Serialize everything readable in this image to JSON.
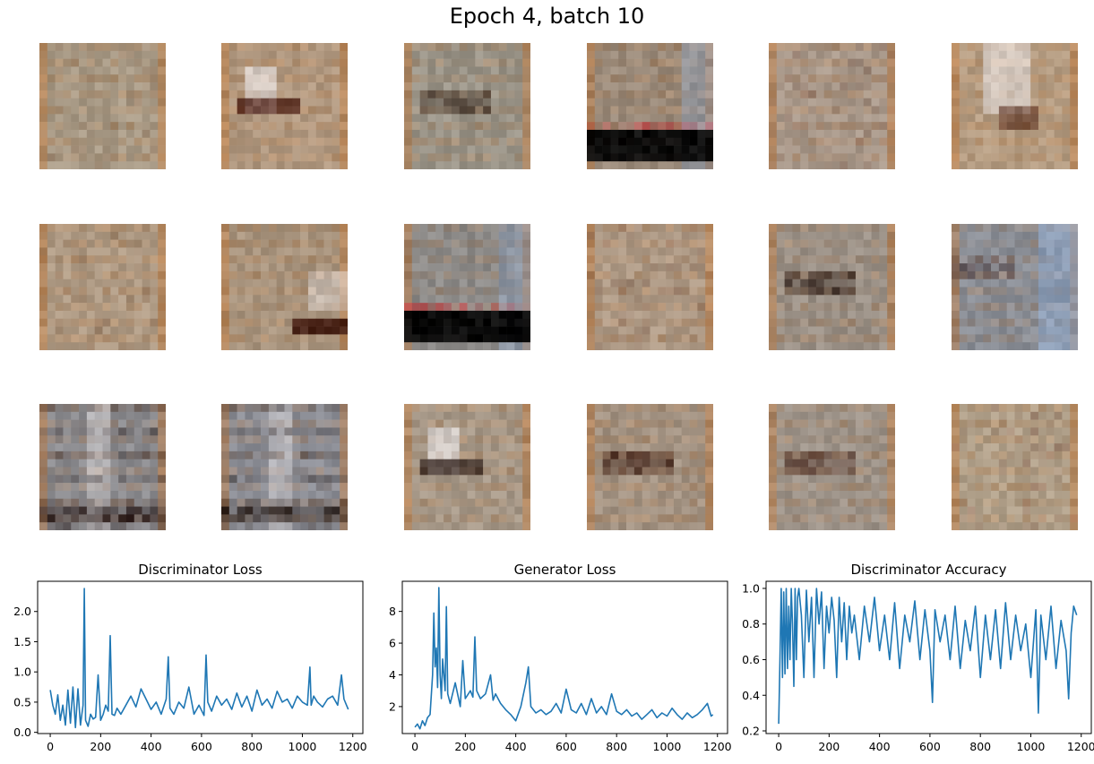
{
  "figure": {
    "title": "Epoch 4, batch 10",
    "grid_rows": 3,
    "grid_cols": 6
  },
  "samples": [
    {
      "base": "#a89a86",
      "accent": "#8a5a3a",
      "style": "faint"
    },
    {
      "base": "#b09880",
      "accent": "#4a1a10",
      "style": "white-left"
    },
    {
      "base": "#9a9488",
      "accent": "#3a2a20",
      "style": "dark-mid"
    },
    {
      "base": "#9a8a7a",
      "accent": "#080808",
      "style": "black-bar"
    },
    {
      "base": "#a8988a",
      "accent": "#6a3a2a",
      "style": "faint"
    },
    {
      "base": "#b49c82",
      "accent": "#5a3020",
      "style": "white-blob"
    },
    {
      "base": "#ae9a84",
      "accent": "#7a5030",
      "style": "faint"
    },
    {
      "base": "#a8947e",
      "accent": "#3a1208",
      "style": "dark-corner"
    },
    {
      "base": "#8c8a88",
      "accent": "#050505",
      "style": "black-bar"
    },
    {
      "base": "#ae9a86",
      "accent": "#6a4030",
      "style": "faint"
    },
    {
      "base": "#9a9086",
      "accent": "#2a1a14",
      "style": "dark-mid"
    },
    {
      "base": "#8a8e96",
      "accent": "#3a2020",
      "style": "blue-right"
    },
    {
      "base": "#8c8c90",
      "accent": "#1a0a08",
      "style": "dark-bottom"
    },
    {
      "base": "#8a8c94",
      "accent": "#20140f",
      "style": "dark-bottom"
    },
    {
      "base": "#a69888",
      "accent": "#2a1a14",
      "style": "white-left"
    },
    {
      "base": "#a29282",
      "accent": "#3a1a10",
      "style": "dark-mid"
    },
    {
      "base": "#9c9288",
      "accent": "#4a2a20",
      "style": "dark-mid"
    },
    {
      "base": "#b0a08a",
      "accent": "#7a4030",
      "style": "faint"
    }
  ],
  "chart_data": [
    {
      "type": "line",
      "title": "Discriminator Loss",
      "color": "#1f77b4",
      "xlim": [
        -50,
        1240
      ],
      "ylim": [
        -0.02,
        2.5
      ],
      "xticks": [
        0,
        200,
        400,
        600,
        800,
        1000,
        1200
      ],
      "yticks": [
        0.0,
        0.5,
        1.0,
        1.5,
        2.0
      ],
      "ytick_labels": [
        "0.0",
        "0.5",
        "1.0",
        "1.5",
        "2.0"
      ],
      "series": [
        {
          "x": [
            0,
            10,
            20,
            30,
            40,
            50,
            60,
            70,
            80,
            90,
            100,
            110,
            120,
            130,
            135,
            140,
            150,
            160,
            170,
            180,
            190,
            200,
            210,
            220,
            230,
            238,
            245,
            255,
            265,
            280,
            300,
            320,
            340,
            360,
            380,
            400,
            420,
            440,
            460,
            468,
            475,
            490,
            510,
            530,
            550,
            570,
            590,
            610,
            618,
            625,
            640,
            660,
            680,
            700,
            720,
            740,
            760,
            780,
            800,
            820,
            840,
            860,
            880,
            900,
            920,
            940,
            960,
            980,
            1000,
            1020,
            1030,
            1035,
            1045,
            1060,
            1080,
            1100,
            1120,
            1140,
            1155,
            1165,
            1175,
            1182
          ],
          "y": [
            0.7,
            0.45,
            0.3,
            0.62,
            0.2,
            0.45,
            0.12,
            0.7,
            0.15,
            0.75,
            0.08,
            0.72,
            0.12,
            0.45,
            2.38,
            0.2,
            0.1,
            0.3,
            0.22,
            0.25,
            0.95,
            0.2,
            0.3,
            0.45,
            0.35,
            1.6,
            0.3,
            0.28,
            0.4,
            0.3,
            0.45,
            0.6,
            0.42,
            0.72,
            0.55,
            0.38,
            0.5,
            0.3,
            0.55,
            1.25,
            0.4,
            0.3,
            0.5,
            0.4,
            0.75,
            0.3,
            0.45,
            0.28,
            1.28,
            0.5,
            0.35,
            0.6,
            0.45,
            0.55,
            0.38,
            0.65,
            0.42,
            0.6,
            0.35,
            0.7,
            0.45,
            0.55,
            0.4,
            0.68,
            0.5,
            0.55,
            0.4,
            0.6,
            0.5,
            0.45,
            1.08,
            0.45,
            0.6,
            0.5,
            0.42,
            0.55,
            0.6,
            0.45,
            0.95,
            0.55,
            0.45,
            0.38
          ]
        }
      ]
    },
    {
      "type": "line",
      "title": "Generator Loss",
      "color": "#1f77b4",
      "xlim": [
        -50,
        1240
      ],
      "ylim": [
        0.3,
        9.9
      ],
      "xticks": [
        0,
        200,
        400,
        600,
        800,
        1000,
        1200
      ],
      "yticks": [
        2,
        4,
        6,
        8
      ],
      "ytick_labels": [
        "2",
        "4",
        "6",
        "8"
      ],
      "series": [
        {
          "x": [
            0,
            10,
            20,
            30,
            40,
            50,
            60,
            70,
            75,
            80,
            85,
            90,
            95,
            100,
            105,
            110,
            120,
            125,
            130,
            140,
            160,
            180,
            190,
            200,
            220,
            230,
            238,
            245,
            260,
            280,
            300,
            310,
            320,
            340,
            360,
            380,
            400,
            420,
            440,
            450,
            460,
            480,
            500,
            520,
            540,
            560,
            580,
            600,
            620,
            640,
            660,
            680,
            700,
            720,
            740,
            760,
            780,
            800,
            820,
            840,
            860,
            880,
            900,
            920,
            940,
            960,
            980,
            1000,
            1020,
            1040,
            1060,
            1080,
            1100,
            1120,
            1140,
            1160,
            1175,
            1182
          ],
          "y": [
            0.7,
            0.9,
            0.6,
            1.1,
            0.8,
            1.3,
            1.5,
            4.0,
            7.9,
            4.5,
            5.7,
            3.2,
            9.5,
            4.0,
            2.5,
            5.0,
            3.0,
            8.3,
            2.8,
            2.2,
            3.5,
            2.0,
            4.9,
            2.5,
            3.0,
            2.6,
            6.4,
            3.0,
            2.5,
            2.8,
            4.0,
            2.4,
            2.8,
            2.2,
            1.8,
            1.5,
            1.1,
            2.0,
            3.5,
            4.5,
            2.0,
            1.6,
            1.8,
            1.5,
            1.7,
            2.2,
            1.6,
            3.1,
            1.8,
            1.6,
            2.2,
            1.5,
            2.5,
            1.6,
            2.0,
            1.5,
            2.8,
            1.7,
            1.5,
            1.8,
            1.4,
            1.6,
            1.2,
            1.5,
            1.8,
            1.3,
            1.6,
            1.4,
            1.9,
            1.5,
            1.2,
            1.6,
            1.3,
            1.5,
            1.8,
            2.2,
            1.4,
            1.5
          ]
        }
      ]
    },
    {
      "type": "line",
      "title": "Discriminator Accuracy",
      "color": "#1f77b4",
      "xlim": [
        -50,
        1240
      ],
      "ylim": [
        0.185,
        1.04
      ],
      "xticks": [
        0,
        200,
        400,
        600,
        800,
        1000,
        1200
      ],
      "yticks": [
        0.2,
        0.4,
        0.6,
        0.8,
        1.0
      ],
      "ytick_labels": [
        "0.2",
        "0.4",
        "0.6",
        "0.8",
        "1.0"
      ],
      "series": [
        {
          "x": [
            0,
            5,
            10,
            15,
            20,
            25,
            30,
            35,
            40,
            45,
            50,
            55,
            60,
            65,
            70,
            75,
            80,
            90,
            100,
            110,
            120,
            130,
            140,
            150,
            160,
            170,
            180,
            190,
            200,
            210,
            220,
            230,
            240,
            250,
            260,
            270,
            280,
            290,
            300,
            320,
            340,
            360,
            380,
            400,
            420,
            440,
            460,
            480,
            500,
            520,
            540,
            560,
            580,
            600,
            610,
            620,
            640,
            660,
            680,
            700,
            720,
            740,
            760,
            780,
            800,
            820,
            840,
            860,
            880,
            900,
            920,
            940,
            960,
            980,
            1000,
            1020,
            1030,
            1040,
            1060,
            1080,
            1100,
            1120,
            1140,
            1150,
            1160,
            1170,
            1182
          ],
          "y": [
            0.24,
            0.6,
            1.0,
            0.5,
            0.98,
            0.52,
            1.0,
            0.55,
            0.9,
            0.6,
            1.0,
            0.8,
            0.45,
            1.0,
            0.6,
            0.95,
            1.0,
            0.85,
            0.5,
            0.99,
            0.7,
            0.95,
            0.5,
            1.0,
            0.8,
            0.98,
            0.55,
            0.9,
            0.75,
            0.95,
            0.82,
            0.5,
            0.95,
            0.7,
            0.92,
            0.6,
            0.9,
            0.75,
            0.85,
            0.6,
            0.9,
            0.7,
            0.95,
            0.65,
            0.85,
            0.6,
            0.92,
            0.55,
            0.85,
            0.7,
            0.93,
            0.6,
            0.88,
            0.65,
            0.36,
            0.88,
            0.7,
            0.85,
            0.6,
            0.9,
            0.55,
            0.82,
            0.65,
            0.9,
            0.5,
            0.85,
            0.6,
            0.88,
            0.55,
            0.92,
            0.6,
            0.85,
            0.65,
            0.8,
            0.5,
            0.88,
            0.3,
            0.85,
            0.6,
            0.9,
            0.55,
            0.82,
            0.65,
            0.38,
            0.75,
            0.9,
            0.85
          ]
        }
      ]
    }
  ]
}
